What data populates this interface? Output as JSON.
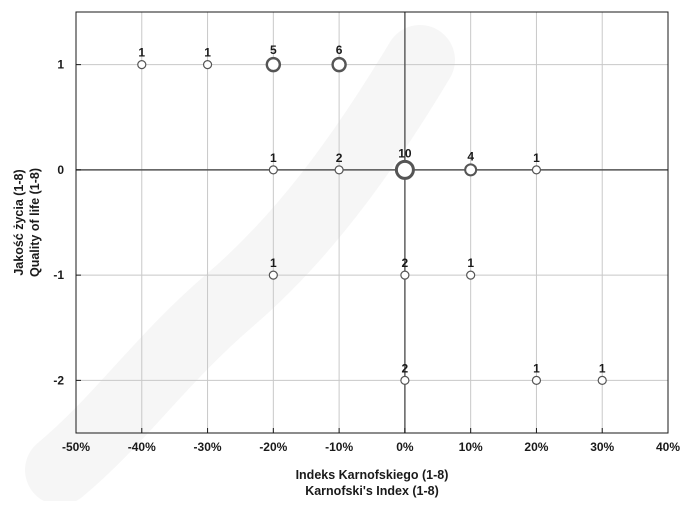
{
  "chart_data": {
    "type": "scatter",
    "title": "",
    "xlabel": [
      "Indeks Karnofskiego (1-8)",
      "Karnofski's Index (1-8)"
    ],
    "ylabel": [
      "Jakość życia (1-8)",
      "Quality of life (1-8)"
    ],
    "xlim": [
      -50,
      40
    ],
    "ylim": [
      -2.5,
      1.5
    ],
    "x_unit": "%",
    "x_ticks": [
      -50,
      -40,
      -30,
      -20,
      -10,
      0,
      10,
      20,
      30,
      40
    ],
    "x_tick_labels": [
      "-50%",
      "-40%",
      "-30%",
      "-20%",
      "-10%",
      "0%",
      "10%",
      "20%",
      "30%",
      "40%"
    ],
    "y_ticks": [
      1,
      0,
      -1,
      -2
    ],
    "y_tick_labels": [
      "1",
      "0",
      "-1",
      "-2"
    ],
    "grid": true,
    "reference_lines": {
      "x": 0,
      "y": 0
    },
    "marker": "open circle sized by count",
    "points": [
      {
        "x": -40,
        "y": 1,
        "count": 1
      },
      {
        "x": -30,
        "y": 1,
        "count": 1
      },
      {
        "x": -20,
        "y": 1,
        "count": 5
      },
      {
        "x": -10,
        "y": 1,
        "count": 6
      },
      {
        "x": -20,
        "y": 0,
        "count": 1
      },
      {
        "x": -10,
        "y": 0,
        "count": 2
      },
      {
        "x": 0,
        "y": 0,
        "count": 10
      },
      {
        "x": 10,
        "y": 0,
        "count": 4
      },
      {
        "x": 20,
        "y": 0,
        "count": 1
      },
      {
        "x": -20,
        "y": -1,
        "count": 1
      },
      {
        "x": 0,
        "y": -1,
        "count": 2
      },
      {
        "x": 10,
        "y": -1,
        "count": 1
      },
      {
        "x": 0,
        "y": -2,
        "count": 2
      },
      {
        "x": 20,
        "y": -2,
        "count": 1
      },
      {
        "x": 30,
        "y": -2,
        "count": 1
      }
    ],
    "colors": {
      "grid": "#c8c8c8",
      "frame": "#1a1a1a",
      "zero_line": "#555555",
      "marker_stroke": "#555555",
      "marker_fill": "#ffffff"
    }
  }
}
